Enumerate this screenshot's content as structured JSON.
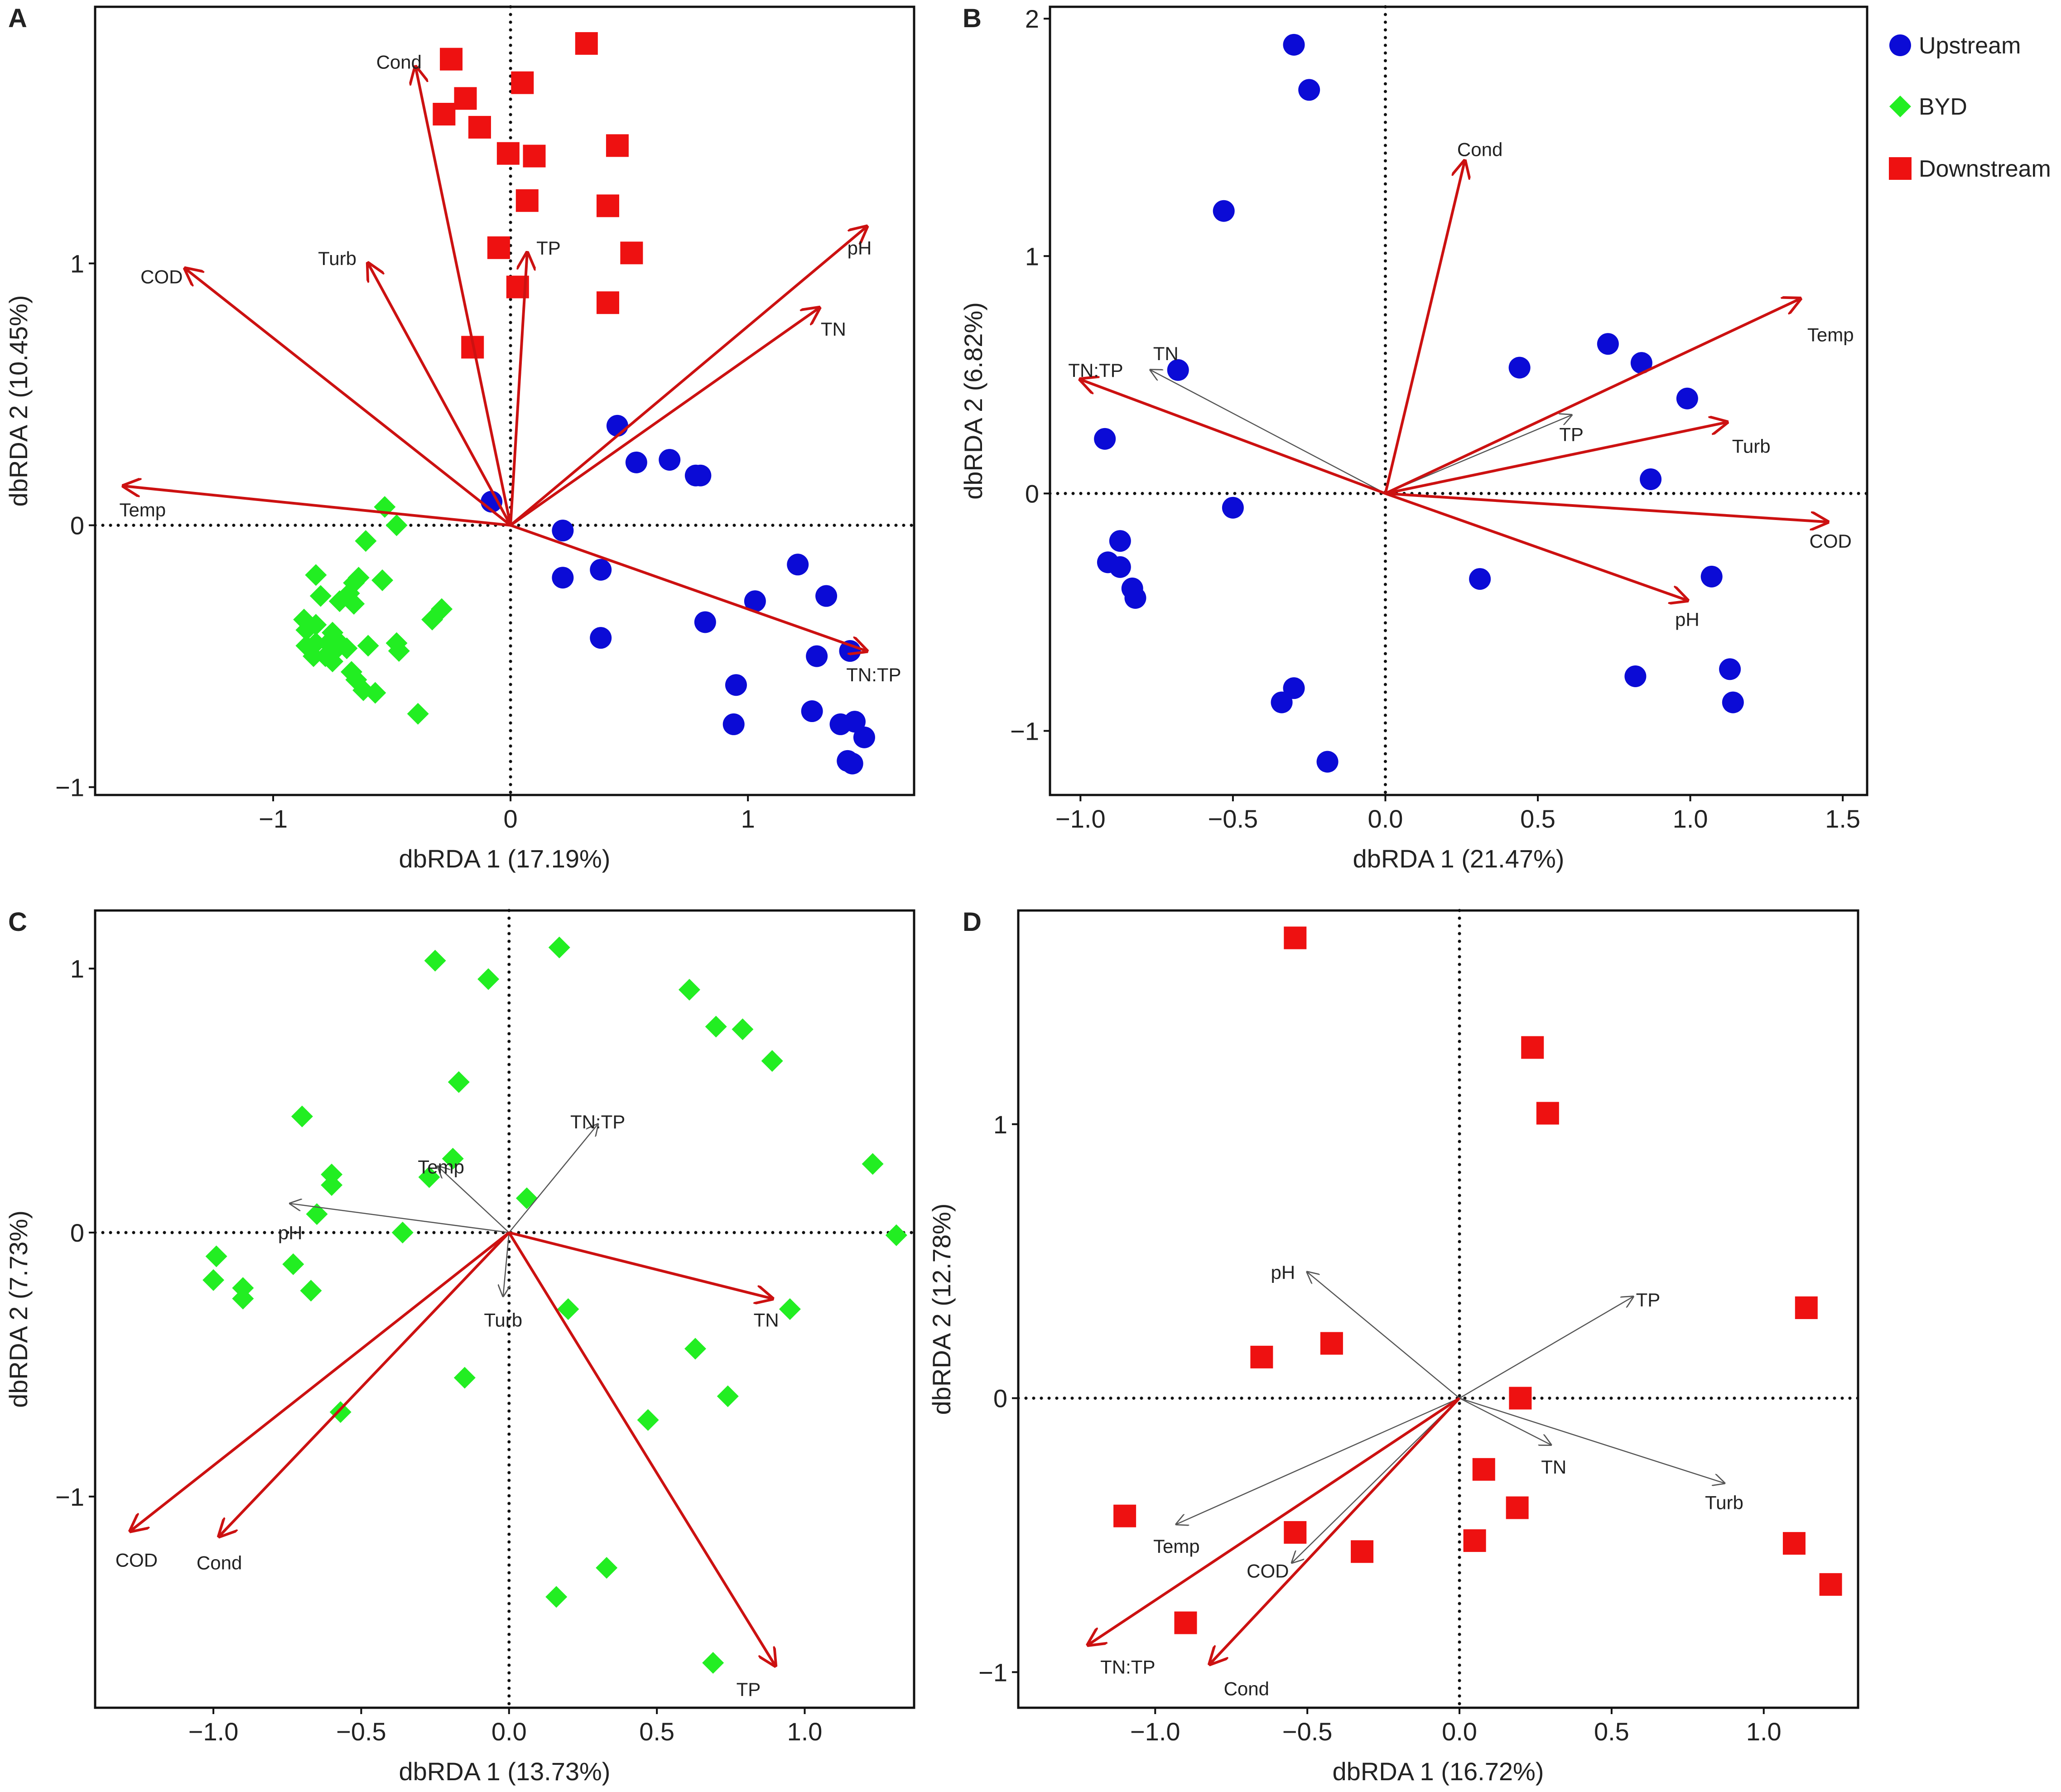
{
  "colors": {
    "Upstream": "#0b0bd6",
    "BYD": "#22ee22",
    "Downstream": "#ee1111",
    "significant": "#cc1111",
    "nonsignificant": "#555555"
  },
  "legend": {
    "entries": [
      {
        "name": "Upstream",
        "shape": "circle",
        "label": "Upstream"
      },
      {
        "name": "BYD",
        "shape": "diamond",
        "label": "BYD"
      },
      {
        "name": "Downstream",
        "shape": "square",
        "label": "Downstream"
      }
    ]
  },
  "chart_data": [
    {
      "panel": "A",
      "type": "scatter",
      "xlabel": "dbRDA 1 (17.19%)",
      "ylabel": "dbRDA 2 (10.45%)",
      "xlim": [
        -1.75,
        1.7
      ],
      "ylim": [
        -1.03,
        1.98
      ],
      "xticks": [
        {
          "v": -1,
          "label": "−1"
        },
        {
          "v": 0,
          "label": "0"
        },
        {
          "v": 1,
          "label": "1"
        }
      ],
      "yticks": [
        {
          "v": -1,
          "label": "−1"
        },
        {
          "v": 0,
          "label": "0"
        },
        {
          "v": 1,
          "label": "1"
        }
      ],
      "groups": [
        {
          "name": "Upstream",
          "shape": "circle",
          "points": [
            [
              -0.08,
              0.09
            ],
            [
              0.45,
              0.38
            ],
            [
              0.53,
              0.24
            ],
            [
              0.67,
              0.25
            ],
            [
              0.78,
              0.19
            ],
            [
              0.8,
              0.19
            ],
            [
              0.22,
              -0.02
            ],
            [
              0.22,
              -0.2
            ],
            [
              0.38,
              -0.17
            ],
            [
              0.38,
              -0.43
            ],
            [
              0.82,
              -0.37
            ],
            [
              1.03,
              -0.29
            ],
            [
              1.21,
              -0.15
            ],
            [
              1.33,
              -0.27
            ],
            [
              1.29,
              -0.5
            ],
            [
              1.43,
              -0.48
            ],
            [
              0.95,
              -0.61
            ],
            [
              0.94,
              -0.76
            ],
            [
              1.27,
              -0.71
            ],
            [
              1.39,
              -0.76
            ],
            [
              1.45,
              -0.75
            ],
            [
              1.49,
              -0.81
            ],
            [
              1.42,
              -0.9
            ],
            [
              1.44,
              -0.91
            ]
          ]
        },
        {
          "name": "BYD",
          "shape": "diamond",
          "points": [
            [
              -0.53,
              0.07
            ],
            [
              -0.48,
              0.0
            ],
            [
              -0.61,
              -0.06
            ],
            [
              -0.54,
              -0.21
            ],
            [
              -0.82,
              -0.19
            ],
            [
              -0.64,
              -0.2
            ],
            [
              -0.66,
              -0.22
            ],
            [
              -0.68,
              -0.26
            ],
            [
              -0.66,
              -0.3
            ],
            [
              -0.72,
              -0.29
            ],
            [
              -0.8,
              -0.27
            ],
            [
              -0.87,
              -0.36
            ],
            [
              -0.82,
              -0.38
            ],
            [
              -0.75,
              -0.41
            ],
            [
              -0.86,
              -0.4
            ],
            [
              -0.82,
              -0.45
            ],
            [
              -0.77,
              -0.45
            ],
            [
              -0.73,
              -0.44
            ],
            [
              -0.69,
              -0.47
            ],
            [
              -0.86,
              -0.46
            ],
            [
              -0.78,
              -0.5
            ],
            [
              -0.83,
              -0.5
            ],
            [
              -0.75,
              -0.52
            ],
            [
              -0.73,
              -0.47
            ],
            [
              -0.6,
              -0.46
            ],
            [
              -0.48,
              -0.45
            ],
            [
              -0.47,
              -0.48
            ],
            [
              -0.33,
              -0.36
            ],
            [
              -0.29,
              -0.32
            ],
            [
              -0.67,
              -0.56
            ],
            [
              -0.65,
              -0.59
            ],
            [
              -0.62,
              -0.63
            ],
            [
              -0.57,
              -0.64
            ],
            [
              -0.39,
              -0.72
            ]
          ]
        },
        {
          "name": "Downstream",
          "shape": "square",
          "points": [
            [
              -0.25,
              1.78
            ],
            [
              0.32,
              1.84
            ],
            [
              -0.19,
              1.63
            ],
            [
              -0.28,
              1.57
            ],
            [
              -0.13,
              1.52
            ],
            [
              0.05,
              1.69
            ],
            [
              -0.01,
              1.42
            ],
            [
              0.1,
              1.41
            ],
            [
              0.45,
              1.45
            ],
            [
              0.07,
              1.24
            ],
            [
              0.41,
              1.22
            ],
            [
              -0.05,
              1.06
            ],
            [
              0.51,
              1.04
            ],
            [
              0.03,
              0.91
            ],
            [
              0.41,
              0.85
            ],
            [
              -0.16,
              0.68
            ]
          ]
        }
      ],
      "vectors": [
        {
          "name": "Cond",
          "x": -0.4,
          "y": 1.75,
          "lx": -0.47,
          "ly": 1.77,
          "color": "red"
        },
        {
          "name": "COD",
          "x": -1.37,
          "y": 0.98,
          "lx": -1.47,
          "ly": 0.95,
          "color": "red"
        },
        {
          "name": "Turb",
          "x": -0.6,
          "y": 1.0,
          "lx": -0.73,
          "ly": 1.02,
          "color": "red"
        },
        {
          "name": "TP",
          "x": 0.07,
          "y": 1.04,
          "lx": 0.16,
          "ly": 1.06,
          "color": "red"
        },
        {
          "name": "pH",
          "x": 1.5,
          "y": 1.14,
          "lx": 1.47,
          "ly": 1.06,
          "color": "red"
        },
        {
          "name": "TN",
          "x": 1.3,
          "y": 0.83,
          "lx": 1.36,
          "ly": 0.75,
          "color": "red"
        },
        {
          "name": "Temp",
          "x": -1.63,
          "y": 0.15,
          "lx": -1.55,
          "ly": 0.06,
          "color": "red"
        },
        {
          "name": "TN:TP",
          "x": 1.5,
          "y": -0.48,
          "lx": 1.53,
          "ly": -0.57,
          "color": "red"
        }
      ]
    },
    {
      "panel": "B",
      "type": "scatter",
      "xlabel": "dbRDA 1 (21.47%)",
      "ylabel": "dbRDA 2 (6.82%)",
      "xlim": [
        -1.1,
        1.58
      ],
      "ylim": [
        -1.27,
        2.05
      ],
      "xticks": [
        {
          "v": -1.0,
          "label": "−1.0"
        },
        {
          "v": -0.5,
          "label": "−0.5"
        },
        {
          "v": 0.0,
          "label": "0.0"
        },
        {
          "v": 0.5,
          "label": "0.5"
        },
        {
          "v": 1.0,
          "label": "1.0"
        },
        {
          "v": 1.5,
          "label": "1.5"
        }
      ],
      "yticks": [
        {
          "v": -1,
          "label": "−1"
        },
        {
          "v": 0,
          "label": "0"
        },
        {
          "v": 1,
          "label": "1"
        },
        {
          "v": 2,
          "label": "2"
        }
      ],
      "groups": [
        {
          "name": "Upstream",
          "shape": "circle",
          "points": [
            [
              -0.3,
              1.89
            ],
            [
              -0.25,
              1.7
            ],
            [
              -0.53,
              1.19
            ],
            [
              -0.68,
              0.52
            ],
            [
              -0.92,
              0.23
            ],
            [
              0.44,
              0.53
            ],
            [
              0.73,
              0.63
            ],
            [
              0.84,
              0.55
            ],
            [
              0.99,
              0.4
            ],
            [
              0.87,
              0.06
            ],
            [
              -0.5,
              -0.06
            ],
            [
              -0.87,
              -0.2
            ],
            [
              -0.91,
              -0.29
            ],
            [
              -0.87,
              -0.31
            ],
            [
              -0.83,
              -0.4
            ],
            [
              -0.82,
              -0.44
            ],
            [
              0.31,
              -0.36
            ],
            [
              1.07,
              -0.35
            ],
            [
              1.13,
              -0.74
            ],
            [
              1.14,
              -0.88
            ],
            [
              0.82,
              -0.77
            ],
            [
              -0.3,
              -0.82
            ],
            [
              -0.34,
              -0.88
            ],
            [
              -0.19,
              -1.13
            ]
          ]
        }
      ],
      "vectors": [
        {
          "name": "Cond",
          "x": 0.26,
          "y": 1.4,
          "lx": 0.31,
          "ly": 1.45,
          "color": "red"
        },
        {
          "name": "Temp",
          "x": 1.36,
          "y": 0.82,
          "lx": 1.46,
          "ly": 0.67,
          "color": "red"
        },
        {
          "name": "Turb",
          "x": 1.12,
          "y": 0.3,
          "lx": 1.2,
          "ly": 0.2,
          "color": "red"
        },
        {
          "name": "COD",
          "x": 1.45,
          "y": -0.12,
          "lx": 1.46,
          "ly": -0.2,
          "color": "red"
        },
        {
          "name": "pH",
          "x": 0.99,
          "y": -0.45,
          "lx": 0.99,
          "ly": -0.53,
          "color": "red"
        },
        {
          "name": "TN:TP",
          "x": -1.0,
          "y": 0.48,
          "lx": -0.95,
          "ly": 0.52,
          "color": "red"
        },
        {
          "name": "TN",
          "x": -0.77,
          "y": 0.52,
          "lx": -0.72,
          "ly": 0.59,
          "color": "gray"
        },
        {
          "name": "TP",
          "x": 0.61,
          "y": 0.33,
          "lx": 0.61,
          "ly": 0.25,
          "color": "gray"
        }
      ]
    },
    {
      "panel": "C",
      "type": "scatter",
      "xlabel": "dbRDA 1 (13.73%)",
      "ylabel": "dbRDA 2 (7.73%)",
      "xlim": [
        -1.4,
        1.37
      ],
      "ylim": [
        -1.8,
        1.22
      ],
      "xticks": [
        {
          "v": -1.0,
          "label": "−1.0"
        },
        {
          "v": -0.5,
          "label": "−0.5"
        },
        {
          "v": 0.0,
          "label": "0.0"
        },
        {
          "v": 0.5,
          "label": "0.5"
        },
        {
          "v": 1.0,
          "label": "1.0"
        }
      ],
      "yticks": [
        {
          "v": -1,
          "label": "−1"
        },
        {
          "v": 0,
          "label": "0"
        },
        {
          "v": 1,
          "label": "1"
        }
      ],
      "groups": [
        {
          "name": "BYD",
          "shape": "diamond",
          "points": [
            [
              -0.25,
              1.03
            ],
            [
              -0.07,
              0.96
            ],
            [
              0.17,
              1.08
            ],
            [
              0.61,
              0.92
            ],
            [
              0.7,
              0.78
            ],
            [
              0.79,
              0.77
            ],
            [
              0.89,
              0.65
            ],
            [
              -0.17,
              0.57
            ],
            [
              -0.7,
              0.44
            ],
            [
              -0.6,
              0.22
            ],
            [
              -0.6,
              0.18
            ],
            [
              -0.27,
              0.21
            ],
            [
              -0.19,
              0.28
            ],
            [
              0.06,
              0.13
            ],
            [
              -0.65,
              0.07
            ],
            [
              -0.36,
              0.0
            ],
            [
              1.23,
              0.26
            ],
            [
              1.31,
              -0.01
            ],
            [
              -0.99,
              -0.09
            ],
            [
              -1.0,
              -0.18
            ],
            [
              -0.9,
              -0.21
            ],
            [
              -0.9,
              -0.25
            ],
            [
              -0.73,
              -0.12
            ],
            [
              -0.67,
              -0.22
            ],
            [
              0.2,
              -0.29
            ],
            [
              0.95,
              -0.29
            ],
            [
              0.63,
              -0.44
            ],
            [
              0.74,
              -0.62
            ],
            [
              0.47,
              -0.71
            ],
            [
              -0.15,
              -0.55
            ],
            [
              -0.57,
              -0.68
            ],
            [
              0.33,
              -1.27
            ],
            [
              0.16,
              -1.38
            ],
            [
              0.69,
              -1.63
            ]
          ]
        }
      ],
      "vectors": [
        {
          "name": "TN",
          "x": 0.89,
          "y": -0.25,
          "lx": 0.87,
          "ly": -0.33,
          "color": "red"
        },
        {
          "name": "TP",
          "x": 0.9,
          "y": -1.64,
          "lx": 0.81,
          "ly": -1.73,
          "color": "red"
        },
        {
          "name": "COD",
          "x": -1.28,
          "y": -1.13,
          "lx": -1.26,
          "ly": -1.24,
          "color": "red"
        },
        {
          "name": "Cond",
          "x": -0.98,
          "y": -1.15,
          "lx": -0.98,
          "ly": -1.25,
          "color": "red"
        },
        {
          "name": "TN:TP",
          "x": 0.3,
          "y": 0.41,
          "lx": 0.3,
          "ly": 0.42,
          "color": "gray"
        },
        {
          "name": "Temp",
          "x": -0.24,
          "y": 0.25,
          "lx": -0.23,
          "ly": 0.25,
          "color": "gray"
        },
        {
          "name": "pH",
          "x": -0.74,
          "y": 0.11,
          "lx": -0.74,
          "ly": 0.0,
          "color": "gray"
        },
        {
          "name": "Turb",
          "x": -0.02,
          "y": -0.24,
          "lx": -0.02,
          "ly": -0.33,
          "color": "gray"
        }
      ]
    },
    {
      "panel": "D",
      "type": "scatter",
      "xlabel": "dbRDA 1 (16.72%)",
      "ylabel": "dbRDA 2 (12.78%)",
      "xlim": [
        -1.45,
        1.31
      ],
      "ylim": [
        -1.13,
        1.78
      ],
      "xticks": [
        {
          "v": -1.0,
          "label": "−1.0"
        },
        {
          "v": -0.5,
          "label": "−0.5"
        },
        {
          "v": 0.0,
          "label": "0.0"
        },
        {
          "v": 0.5,
          "label": "0.5"
        },
        {
          "v": 1.0,
          "label": "1.0"
        }
      ],
      "yticks": [
        {
          "v": -1,
          "label": "−1"
        },
        {
          "v": 0,
          "label": "0"
        },
        {
          "v": 1,
          "label": "1"
        }
      ],
      "groups": [
        {
          "name": "Downstream",
          "shape": "square",
          "points": [
            [
              -0.54,
              1.68
            ],
            [
              0.24,
              1.28
            ],
            [
              0.29,
              1.04
            ],
            [
              1.14,
              0.33
            ],
            [
              -0.65,
              0.15
            ],
            [
              -0.42,
              0.2
            ],
            [
              0.2,
              0.0
            ],
            [
              0.08,
              -0.26
            ],
            [
              0.19,
              -0.4
            ],
            [
              0.05,
              -0.52
            ],
            [
              -0.32,
              -0.56
            ],
            [
              -0.54,
              -0.49
            ],
            [
              -1.1,
              -0.43
            ],
            [
              1.1,
              -0.53
            ],
            [
              1.22,
              -0.68
            ],
            [
              -0.9,
              -0.82
            ]
          ]
        }
      ],
      "vectors": [
        {
          "name": "TN:TP",
          "x": -1.22,
          "y": -0.9,
          "lx": -1.09,
          "ly": -0.98,
          "color": "red"
        },
        {
          "name": "Cond",
          "x": -0.82,
          "y": -0.97,
          "lx": -0.7,
          "ly": -1.06,
          "color": "red"
        },
        {
          "name": "pH",
          "x": -0.5,
          "y": 0.46,
          "lx": -0.58,
          "ly": 0.46,
          "color": "gray"
        },
        {
          "name": "TP",
          "x": 0.57,
          "y": 0.37,
          "lx": 0.62,
          "ly": 0.36,
          "color": "gray"
        },
        {
          "name": "TN",
          "x": 0.3,
          "y": -0.17,
          "lx": 0.31,
          "ly": -0.25,
          "color": "gray"
        },
        {
          "name": "Turb",
          "x": 0.87,
          "y": -0.31,
          "lx": 0.87,
          "ly": -0.38,
          "color": "gray"
        },
        {
          "name": "Temp",
          "x": -0.93,
          "y": -0.46,
          "lx": -0.93,
          "ly": -0.54,
          "color": "gray"
        },
        {
          "name": "COD",
          "x": -0.55,
          "y": -0.6,
          "lx": -0.63,
          "ly": -0.63,
          "color": "gray"
        }
      ]
    }
  ]
}
